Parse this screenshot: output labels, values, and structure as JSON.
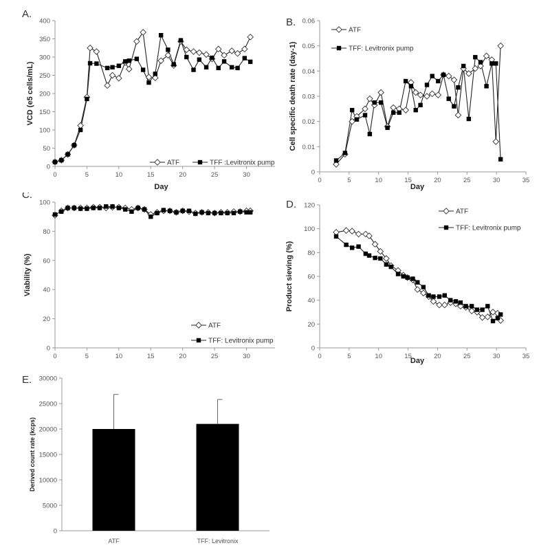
{
  "chart_data": [
    {
      "panel": "A.",
      "type": "line",
      "xlabel": "Day",
      "ylabel": "VCD (e5 cells/mL)",
      "xlim": [
        0,
        35
      ],
      "xticks": [
        0,
        5,
        10,
        15,
        20,
        25,
        30,
        35
      ],
      "ylim": [
        0,
        400
      ],
      "yticks": [
        0,
        50,
        100,
        150,
        200,
        250,
        300,
        350,
        400
      ],
      "legend_position": "bottom-right",
      "legend_layout": "row",
      "series": [
        {
          "name": "ATF",
          "marker": "diamond-open",
          "x": [
            0,
            1,
            2,
            3,
            4,
            5,
            5.5,
            6.5,
            8.2,
            9,
            10,
            11,
            11.6,
            12.8,
            13.8,
            14.7,
            15.7,
            16.6,
            17.7,
            18.6,
            19.7,
            20.6,
            21.7,
            22.6,
            23.7,
            24.6,
            25.6,
            26.5,
            27.7,
            28.6,
            29.7,
            30.6
          ],
          "y": [
            12,
            17,
            33,
            58,
            112,
            190,
            325,
            315,
            222,
            250,
            242,
            285,
            267,
            343,
            368,
            245,
            243,
            290,
            305,
            277,
            343,
            320,
            315,
            312,
            307,
            295,
            322,
            305,
            317,
            310,
            322,
            355
          ]
        },
        {
          "name": "TFF :Levitronix pump",
          "marker": "square-filled",
          "x": [
            0,
            1,
            2,
            3,
            4,
            5,
            5.5,
            6.5,
            8.2,
            9,
            10,
            11,
            11.6,
            12.8,
            13.8,
            14.7,
            15.7,
            16.6,
            17.7,
            18.6,
            19.7,
            20.6,
            21.7,
            22.6,
            23.7,
            24.6,
            25.6,
            26.5,
            27.7,
            28.6,
            29.7,
            30.6
          ],
          "y": [
            12,
            17,
            33,
            58,
            100,
            185,
            283,
            282,
            270,
            272,
            276,
            288,
            290,
            295,
            265,
            230,
            254,
            360,
            320,
            280,
            346,
            300,
            265,
            293,
            272,
            298,
            270,
            288,
            272,
            270,
            297,
            287
          ]
        }
      ]
    },
    {
      "panel": "B.",
      "type": "line",
      "xlabel": "Day",
      "ylabel": "Cell specific death rate (day-1)",
      "xlim": [
        0,
        35
      ],
      "xticks": [
        0,
        5,
        10,
        15,
        20,
        25,
        30,
        35
      ],
      "ylim": [
        0,
        0.06
      ],
      "yticks": [
        0,
        0.01,
        0.02,
        0.03,
        0.04,
        0.05,
        0.06
      ],
      "legend_position": "top-left",
      "legend_layout": "column",
      "series": [
        {
          "name": "ATF",
          "marker": "diamond-open",
          "x": [
            2.8,
            4.3,
            5.5,
            6.3,
            7.7,
            8.5,
            9.3,
            10.4,
            11.5,
            12.5,
            13.5,
            14.6,
            15.5,
            16.3,
            17.1,
            18.2,
            19.1,
            20.1,
            21.0,
            21.9,
            22.8,
            23.5,
            24.4,
            25.3,
            26.4,
            27.3,
            28.3,
            29.2,
            29.9,
            30.7
          ],
          "y": [
            0.003,
            0.007,
            0.02,
            0.022,
            0.025,
            0.029,
            0.0265,
            0.0315,
            0.018,
            0.0255,
            0.025,
            0.0245,
            0.0355,
            0.0315,
            0.0305,
            0.03,
            0.031,
            0.0305,
            0.0385,
            0.038,
            0.0365,
            0.0225,
            0.041,
            0.039,
            0.041,
            0.042,
            0.046,
            0.0445,
            0.012,
            0.05
          ]
        },
        {
          "name": "TFF: Levitronix pump",
          "marker": "square-filled",
          "x": [
            2.8,
            4.3,
            5.5,
            6.3,
            7.7,
            8.5,
            9.3,
            10.4,
            11.5,
            12.5,
            13.5,
            14.6,
            15.5,
            16.3,
            17.1,
            18.2,
            19.1,
            20.1,
            21.0,
            21.9,
            22.8,
            23.5,
            24.4,
            25.3,
            26.4,
            27.3,
            28.3,
            29.2,
            29.9,
            30.7
          ],
          "y": [
            0.0045,
            0.0075,
            0.0245,
            0.0208,
            0.0225,
            0.015,
            0.0275,
            0.0275,
            0.0175,
            0.0235,
            0.0235,
            0.036,
            0.034,
            0.0245,
            0.0265,
            0.0345,
            0.038,
            0.036,
            0.0385,
            0.029,
            0.026,
            0.0335,
            0.042,
            0.021,
            0.0455,
            0.0435,
            0.034,
            0.043,
            0.043,
            0.005
          ]
        }
      ]
    },
    {
      "panel": "C.",
      "type": "line",
      "xlabel": "",
      "ylabel": "Viability (%)",
      "xlim": [
        0,
        35
      ],
      "xticks": [
        0,
        5,
        10,
        15,
        20,
        25,
        30,
        35
      ],
      "ylim": [
        0,
        100
      ],
      "yticks": [
        0,
        20,
        40,
        60,
        80,
        100
      ],
      "legend_position": "bottom-right",
      "legend_layout": "column",
      "series": [
        {
          "name": "ATF",
          "marker": "diamond-open",
          "x": [
            0,
            1,
            2,
            3,
            4,
            5,
            6,
            7,
            8,
            9,
            10,
            11,
            12,
            13,
            14,
            15,
            16,
            17,
            18,
            19,
            20,
            21,
            22,
            23,
            24,
            25,
            26,
            27,
            28,
            29,
            30,
            30.6
          ],
          "y": [
            91,
            94,
            96,
            96,
            96,
            96,
            96.5,
            96.5,
            96,
            96.5,
            96.5,
            96,
            95,
            96,
            95,
            91.5,
            93,
            94,
            94,
            93,
            94,
            93.5,
            92.5,
            93,
            93,
            92.5,
            93,
            93,
            93.5,
            93.5,
            94,
            94
          ]
        },
        {
          "name": "TFF: Levitronix pump",
          "marker": "square-filled",
          "x": [
            0,
            1,
            2,
            3,
            4,
            5,
            6,
            7,
            8,
            9,
            10,
            11,
            12,
            13,
            14,
            15,
            16,
            17,
            18,
            19,
            20,
            21,
            22,
            23,
            24,
            25,
            26,
            27,
            28,
            29,
            30,
            30.6
          ],
          "y": [
            91.5,
            93.5,
            96,
            96,
            95.5,
            95.5,
            96,
            96,
            97,
            97,
            96,
            95,
            93.5,
            96,
            95,
            90,
            92.5,
            94.5,
            94,
            93,
            94,
            94,
            92,
            93,
            92.5,
            92.5,
            92.5,
            92.5,
            92.5,
            93.5,
            93,
            93
          ]
        }
      ]
    },
    {
      "panel": "D.",
      "type": "line",
      "xlabel": "Day",
      "ylabel": "Product sieving (%)",
      "xlim": [
        0,
        35
      ],
      "xticks": [
        0,
        5,
        10,
        15,
        20,
        25,
        30,
        35
      ],
      "ylim": [
        0,
        120
      ],
      "yticks": [
        0,
        20,
        40,
        60,
        80,
        100,
        120
      ],
      "legend_position": "top-right",
      "legend_layout": "column",
      "series": [
        {
          "name": "ATF",
          "marker": "diamond-open",
          "x": [
            2.8,
            4.5,
            5.5,
            6.6,
            7.8,
            8.4,
            9.4,
            10.3,
            11.3,
            12.1,
            13.3,
            14.2,
            14.9,
            15.8,
            16.6,
            17.6,
            18.5,
            19.3,
            20.3,
            21.2,
            22.2,
            23.1,
            23.9,
            24.8,
            25.8,
            26.7,
            27.6,
            28.5,
            29.4,
            30.2,
            30.7
          ],
          "y": [
            97,
            98.5,
            98,
            95.5,
            95.5,
            94,
            87,
            81,
            75,
            69,
            65,
            61,
            59,
            57,
            49,
            46,
            43,
            39,
            36,
            36,
            38,
            37,
            35,
            34,
            31,
            30,
            25.5,
            26,
            30,
            29,
            23
          ]
        },
        {
          "name": "TFF: Levitronix pump",
          "marker": "square-filled",
          "x": [
            2.8,
            4.5,
            5.5,
            6.6,
            7.8,
            8.4,
            9.4,
            10.3,
            11.3,
            12.1,
            13.3,
            14.2,
            14.9,
            15.8,
            16.6,
            17.6,
            18.5,
            19.3,
            20.3,
            21.2,
            22.2,
            23.1,
            23.9,
            24.8,
            25.8,
            26.7,
            27.6,
            28.5,
            29.4,
            30.2,
            30.7
          ],
          "y": [
            93.5,
            86.5,
            84,
            85,
            79,
            77.5,
            75.5,
            75,
            70,
            68,
            62,
            60,
            59,
            58,
            55,
            51,
            44,
            43,
            43,
            44,
            40,
            39,
            38,
            35,
            35,
            32,
            32,
            35,
            22.5,
            25,
            28
          ]
        }
      ]
    },
    {
      "panel": "E.",
      "type": "bar",
      "xlabel": "",
      "ylabel": "Derived count rate (kcps)",
      "ylim": [
        0,
        30000
      ],
      "yticks": [
        0,
        5000,
        10000,
        15000,
        20000,
        25000,
        30000
      ],
      "categories": [
        "ATF",
        "TFF: Levitronix"
      ],
      "values": [
        20000,
        21000
      ],
      "error_upper": [
        6800,
        4800
      ],
      "bar_color": "#000000"
    }
  ],
  "colors": {
    "axis": "#999999",
    "line": "#222222",
    "marker_fill": "#000000",
    "open_fill": "#ffffff"
  }
}
